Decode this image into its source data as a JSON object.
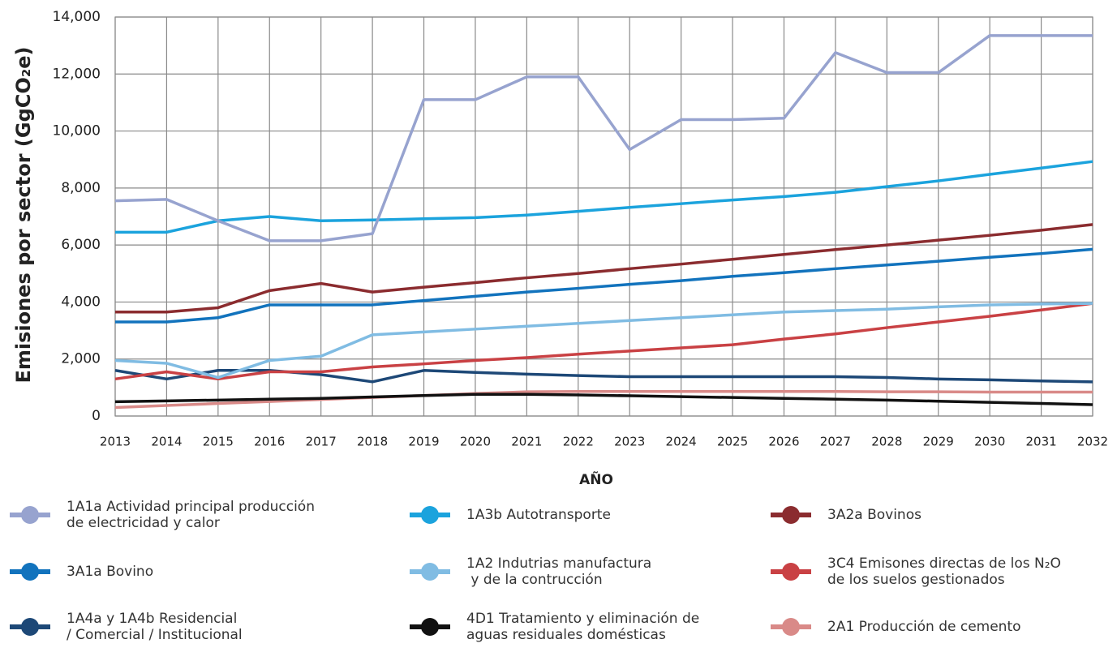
{
  "chart_data": {
    "type": "line",
    "y_label": "Emisiones por sector  (GgCO₂e)",
    "x_label": "AÑO",
    "x": [
      2013,
      2014,
      2015,
      2016,
      2017,
      2018,
      2019,
      2020,
      2021,
      2022,
      2023,
      2024,
      2025,
      2026,
      2027,
      2028,
      2029,
      2030,
      2031,
      2032
    ],
    "xlim": [
      2013,
      2032
    ],
    "xticks": [
      2013,
      2014,
      2015,
      2016,
      2017,
      2018,
      2019,
      2020,
      2021,
      2022,
      2023,
      2024,
      2025,
      2026,
      2027,
      2028,
      2029,
      2030,
      2031,
      2032
    ],
    "ylim": [
      0,
      14000
    ],
    "yticks": [
      0,
      {
        "value": 2000,
        "label": "2,000"
      },
      {
        "value": 4000,
        "label": "4,000"
      },
      {
        "value": 6000,
        "label": "6,000"
      },
      {
        "value": 8000,
        "label": "8,000"
      },
      {
        "value": 10000,
        "label": "10,000"
      },
      {
        "value": 12000,
        "label": "12,000"
      },
      {
        "value": 14000,
        "label": "14,000"
      }
    ],
    "grid": true,
    "legend": "bottom",
    "series": [
      {
        "name": "1A1a Actividad principal producción\nde electricidad y calor",
        "color": "#97a3cf",
        "values": [
          7550,
          7600,
          6850,
          6150,
          6150,
          6400,
          11100,
          11100,
          11900,
          11900,
          9350,
          10400,
          10400,
          10450,
          12750,
          12050,
          12050,
          13350,
          13350,
          13350
        ]
      },
      {
        "name": "1A3b Autotransporte",
        "color": "#1ba3dd",
        "values": [
          6450,
          6450,
          6850,
          7000,
          6850,
          6880,
          6920,
          6960,
          7050,
          7180,
          7320,
          7450,
          7580,
          7700,
          7850,
          8050,
          8250,
          8480,
          8700,
          8930
        ]
      },
      {
        "name": "3A2a Bovinos",
        "color": "#8b2c2f",
        "values": [
          3650,
          3650,
          3800,
          4400,
          4650,
          4350,
          4520,
          4680,
          4850,
          5000,
          5170,
          5330,
          5500,
          5670,
          5840,
          6000,
          6170,
          6340,
          6520,
          6720
        ]
      },
      {
        "name": "3A1a Bovino",
        "color": "#1273bd",
        "values": [
          3300,
          3300,
          3450,
          3900,
          3900,
          3900,
          4050,
          4200,
          4350,
          4480,
          4620,
          4750,
          4900,
          5030,
          5170,
          5300,
          5430,
          5570,
          5700,
          5850
        ]
      },
      {
        "name": "1A2 Indutrias manufactura\n y de la contrucción",
        "color": "#80bce3",
        "values": [
          1950,
          1850,
          1350,
          1950,
          2100,
          2850,
          2950,
          3050,
          3150,
          3250,
          3350,
          3450,
          3550,
          3650,
          3700,
          3750,
          3830,
          3900,
          3930,
          3950
        ]
      },
      {
        "name": "3C4 Emisones directas de los N₂O\nde los suelos gestionados",
        "color": "#c94144",
        "values": [
          1300,
          1550,
          1300,
          1550,
          1550,
          1720,
          1830,
          1950,
          2050,
          2170,
          2280,
          2390,
          2500,
          2700,
          2880,
          3100,
          3300,
          3500,
          3720,
          3950
        ]
      },
      {
        "name": "1A4a y 1A4b Residencial\n/ Comercial / Institucional",
        "color": "#1d4877",
        "values": [
          1600,
          1300,
          1600,
          1600,
          1450,
          1200,
          1600,
          1530,
          1470,
          1420,
          1380,
          1380,
          1380,
          1380,
          1380,
          1350,
          1300,
          1270,
          1230,
          1200
        ]
      },
      {
        "name": "4D1 Tratamiento y eliminación de\naguas residuales domésticas",
        "color": "#111111",
        "values": [
          500,
          530,
          560,
          590,
          620,
          670,
          720,
          760,
          760,
          740,
          710,
          680,
          650,
          620,
          590,
          560,
          520,
          480,
          440,
          400
        ]
      },
      {
        "name": "2A1 Producción de cemento",
        "color": "#d98a88",
        "values": [
          300,
          370,
          440,
          510,
          580,
          650,
          720,
          790,
          850,
          860,
          860,
          860,
          860,
          860,
          860,
          850,
          850,
          840,
          840,
          840
        ]
      }
    ]
  }
}
